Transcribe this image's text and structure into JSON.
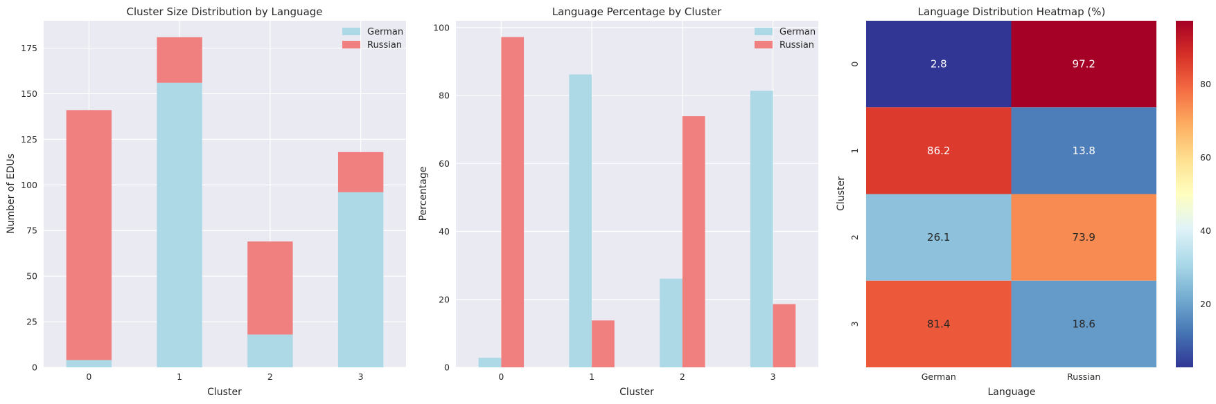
{
  "colors": {
    "panel_bg": "#eaeaf2",
    "german": "#add8e6",
    "russian": "#f08080"
  },
  "chart_data": [
    {
      "type": "bar",
      "stacked": true,
      "title": "Cluster Size Distribution by Language",
      "xlabel": "Cluster",
      "ylabel": "Number of EDUs",
      "categories": [
        "0",
        "1",
        "2",
        "3"
      ],
      "series": [
        {
          "name": "German",
          "values": [
            4,
            156,
            18,
            96
          ],
          "color": "#add8e6"
        },
        {
          "name": "Russian",
          "values": [
            137,
            25,
            51,
            22
          ],
          "color": "#f08080"
        }
      ],
      "ylim": [
        0,
        190
      ],
      "yticks": [
        0,
        25,
        50,
        75,
        100,
        125,
        150,
        175
      ],
      "grid": true,
      "legend": "top-right"
    },
    {
      "type": "bar",
      "stacked": false,
      "title": "Language Percentage by Cluster",
      "xlabel": "Cluster",
      "ylabel": "Percentage",
      "categories": [
        "0",
        "1",
        "2",
        "3"
      ],
      "series": [
        {
          "name": "German",
          "values": [
            2.8,
            86.2,
            26.1,
            81.4
          ],
          "color": "#add8e6"
        },
        {
          "name": "Russian",
          "values": [
            97.2,
            13.8,
            73.9,
            18.6
          ],
          "color": "#f08080"
        }
      ],
      "ylim": [
        0,
        102
      ],
      "yticks": [
        0,
        20,
        40,
        60,
        80,
        100
      ],
      "grid": true,
      "legend": "top-right"
    },
    {
      "type": "heatmap",
      "title": "Language Distribution Heatmap (%)",
      "xlabel": "Language",
      "ylabel": "Cluster",
      "x": [
        "German",
        "Russian"
      ],
      "y": [
        "0",
        "1",
        "2",
        "3"
      ],
      "values": [
        [
          2.8,
          97.2
        ],
        [
          86.2,
          13.8
        ],
        [
          26.1,
          73.9
        ],
        [
          81.4,
          18.6
        ]
      ],
      "labels": [
        [
          "2.8",
          "97.2"
        ],
        [
          "86.2",
          "13.8"
        ],
        [
          "26.1",
          "73.9"
        ],
        [
          "81.4",
          "18.6"
        ]
      ],
      "colormap": "RdYlBu_r",
      "vmin": 2.8,
      "vmax": 97.2,
      "colorbar_ticks": [
        20,
        40,
        60,
        80
      ]
    }
  ]
}
